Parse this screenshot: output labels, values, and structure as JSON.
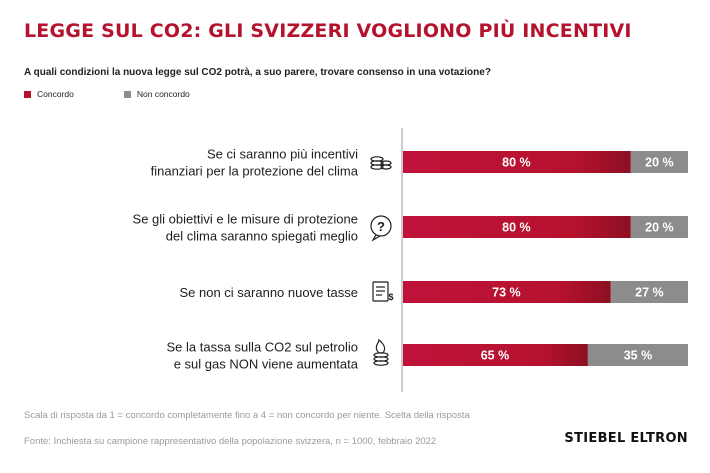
{
  "header": {
    "title": "LEGGE SUL CO2: GLI SVIZZERI VOGLIONO PIÙ INCENTIVI",
    "question": "A quali condizioni la nuova legge sul CO2 potrà, a suo parere, trovare consenso in una votazione?"
  },
  "legend": {
    "agree": "Concordo",
    "disagree": "Non concordo"
  },
  "colors": {
    "agree": "#b5122e",
    "disagree": "#8c8c8c",
    "title": "#b5122e"
  },
  "chart_data": {
    "type": "bar",
    "orientation": "horizontal",
    "stacked": true,
    "percent": true,
    "categories": [
      [
        "Se ci saranno più incentivi",
        "finanziari per la protezione del clima"
      ],
      [
        "Se gli obiettivi e le misure di protezione",
        "del clima saranno spiegati meglio"
      ],
      [
        "Se non ci saranno nuove tasse"
      ],
      [
        "Se la tassa sulla CO2 sul petrolio",
        "e sul gas NON viene aumentata"
      ]
    ],
    "category_icons": [
      "coins-icon",
      "question-speech-icon",
      "tax-document-icon",
      "flame-coins-icon"
    ],
    "series": [
      {
        "name": "Concordo",
        "values": [
          80,
          80,
          73,
          65
        ],
        "labels": [
          "80 %",
          "80 %",
          "73 %",
          "65 %"
        ]
      },
      {
        "name": "Non concordo",
        "values": [
          20,
          20,
          27,
          35
        ],
        "labels": [
          "20 %",
          "20 %",
          "27 %",
          "35 %"
        ]
      }
    ],
    "xlim": [
      0,
      100
    ],
    "legend_position": "top-left"
  },
  "footer": {
    "note": "Scala di risposta da 1 = concordo completamente fino a 4 = non concordo per niente. Scelta della risposta",
    "source": "Fonte: Inchiesta su campione rappresentativo della popolazione svizzera, n = 1000, febbraio 2022",
    "brand": "STIEBEL ELTRON"
  }
}
